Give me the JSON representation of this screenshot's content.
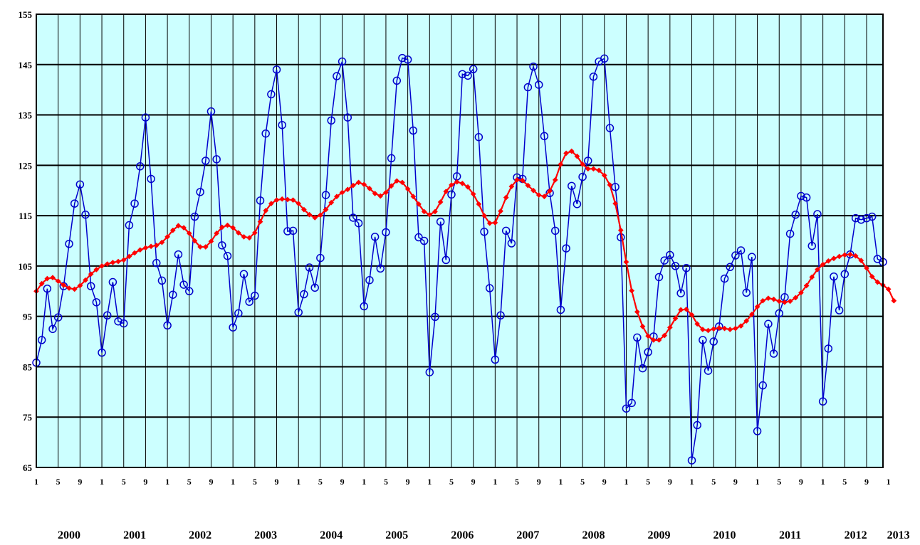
{
  "chart_data": {
    "type": "line",
    "title": "",
    "xlabel": "",
    "ylabel": "",
    "ylim": [
      65,
      155
    ],
    "y_ticks": [
      "65",
      "75",
      "85",
      "95",
      "105",
      "115",
      "125",
      "135",
      "145",
      "155"
    ],
    "month_tick_labels": [
      "1",
      "5",
      "9",
      "1",
      "5",
      "9",
      "1",
      "5",
      "9",
      "1",
      "5",
      "9",
      "1",
      "5",
      "9",
      "1",
      "5",
      "9",
      "1",
      "5",
      "9",
      "1",
      "5",
      "9",
      "1",
      "5",
      "9",
      "1",
      "5",
      "9",
      "1",
      "5",
      "9",
      "1",
      "5",
      "9",
      "1",
      "5",
      "9",
      "1"
    ],
    "year_labels": [
      "2000",
      "2001",
      "2002",
      "2003",
      "2004",
      "2005",
      "2006",
      "2007",
      "2008",
      "2009",
      "2010",
      "2011",
      "2012",
      "2013"
    ],
    "x_start": "2000-01",
    "x_end": "2013-01",
    "grid": true,
    "background_color": "#ccffff",
    "series": [
      {
        "color": "#0000cc",
        "marker": "circle",
        "values": [
          85.8,
          90.3,
          100.5,
          92.5,
          94.8,
          101,
          109.4,
          117.4,
          121.2,
          115.2,
          101,
          97.8,
          87.8,
          95.2,
          101.8,
          94,
          93.6,
          113.1,
          117.4,
          124.8,
          134.5,
          122.3,
          105.6,
          102.1,
          93.2,
          99.3,
          107.3,
          101.3,
          100,
          114.8,
          119.7,
          125.9,
          135.7,
          126.2,
          109.1,
          107,
          92.8,
          95.6,
          103.4,
          97.9,
          99.1,
          118,
          131.3,
          139.1,
          144,
          133,
          111.9,
          112,
          95.8,
          99.4,
          104.7,
          100.7,
          106.6,
          119.1,
          133.9,
          142.7,
          145.6,
          134.5,
          114.6,
          113.5,
          97,
          102.2,
          110.8,
          104.5,
          111.7,
          126.4,
          141.8,
          146.3,
          146,
          131.9,
          110.7,
          110,
          83.9,
          94.9,
          113.8,
          106.2,
          119.2,
          122.8,
          143.1,
          142.8,
          144.1,
          130.6,
          111.8,
          100.6,
          86.4,
          95.2,
          112,
          109.5,
          122.6,
          122.3,
          140.5,
          144.6,
          141,
          130.8,
          119.5,
          112,
          96.3,
          108.5,
          120.9,
          117.3,
          122.7,
          125.9,
          142.6,
          145.6,
          146.2,
          132.4,
          120.7,
          110.7,
          76.7,
          77.8,
          90.8,
          84.7,
          87.9,
          91,
          102.8,
          106.1,
          107.2,
          105,
          99.6,
          104.6,
          66.4,
          73.4,
          90.3,
          84.2,
          90,
          93,
          102.5,
          104.8,
          107.1,
          108.1,
          99.7,
          106.8,
          72.2,
          81.3,
          93.5,
          87.6,
          95.6,
          98.8,
          111.4,
          115.2,
          118.9,
          118.6,
          109,
          115.3,
          78.1,
          88.6,
          102.9,
          96.2,
          103.4,
          107.3,
          114.5,
          114.2,
          114.5,
          114.8,
          106.4,
          105.8
        ]
      },
      {
        "color": "#ff0000",
        "marker": "diamond",
        "values": [
          100,
          101.5,
          102.5,
          102.7,
          102,
          101.2,
          100.6,
          100.4,
          101.1,
          102.2,
          103.4,
          104.3,
          105,
          105.4,
          105.7,
          105.9,
          106.2,
          106.9,
          107.6,
          108.2,
          108.6,
          108.9,
          109.1,
          109.7,
          110.8,
          112.1,
          113,
          112.6,
          111.5,
          110,
          108.8,
          108.8,
          109.9,
          111.5,
          112.7,
          113.1,
          112.6,
          111.6,
          110.8,
          110.6,
          111.6,
          113.8,
          116,
          117.4,
          118.1,
          118.3,
          118.2,
          118.1,
          117.4,
          116.2,
          115.2,
          114.6,
          115.1,
          116.2,
          117.6,
          118.8,
          119.6,
          120.2,
          121,
          121.6,
          121.2,
          120.4,
          119.4,
          118.9,
          119.6,
          120.9,
          121.9,
          121.6,
          120.3,
          118.8,
          117.3,
          115.8,
          115.2,
          115.8,
          117.7,
          119.8,
          121.1,
          121.7,
          121.4,
          120.7,
          119.3,
          117.3,
          115,
          113.5,
          113.6,
          115.9,
          118.6,
          120.8,
          122.1,
          122,
          121,
          120,
          119.1,
          118.8,
          119.9,
          122.1,
          125.2,
          127.4,
          127.8,
          126.8,
          125.2,
          124.3,
          124.3,
          124,
          123,
          121.1,
          117.4,
          112.1,
          105.8,
          100.1,
          95.9,
          93,
          91.1,
          90.3,
          90.3,
          91.2,
          92.8,
          94.6,
          96.3,
          96.4,
          95.3,
          93.5,
          92.4,
          92.2,
          92.5,
          92.7,
          92.6,
          92.4,
          92.6,
          93.1,
          94.1,
          95.4,
          96.9,
          98.1,
          98.6,
          98.4,
          98,
          97.8,
          98,
          98.7,
          99.7,
          101.1,
          102.8,
          104.3,
          105.3,
          106,
          106.5,
          106.9,
          107.2,
          107.3,
          107,
          106.1,
          104.6,
          102.9,
          101.8,
          101.2,
          100.4,
          98.1
        ]
      }
    ]
  }
}
